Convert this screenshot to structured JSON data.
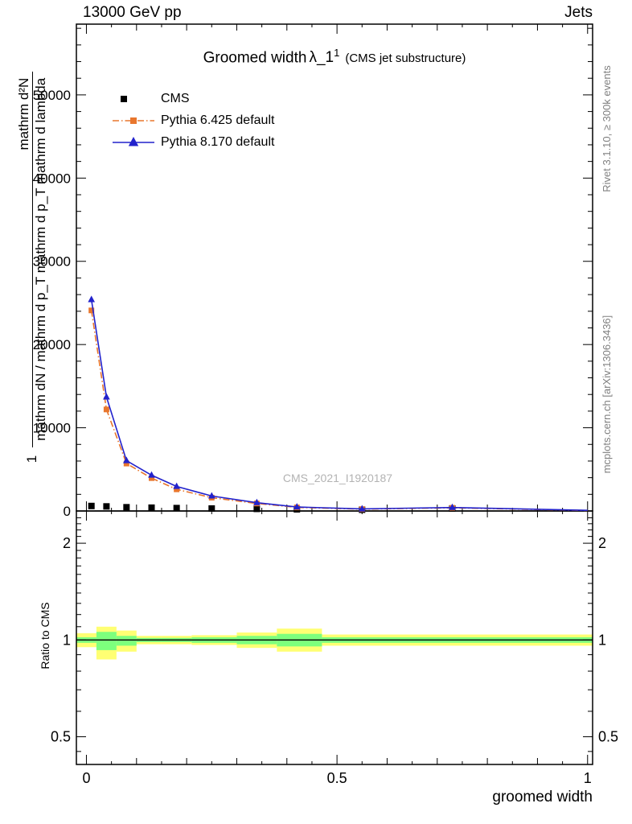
{
  "header": {
    "left": "13000 GeV pp",
    "right": "Jets"
  },
  "side_notes": {
    "top_right": "Rivet 3.1.10, ≥ 300k events",
    "bottom_right": "mcplots.cern.ch [arXiv:1306.3436]"
  },
  "watermark": "CMS_2021_I1920187",
  "colors": {
    "cms": "#000000",
    "pythia6": "#e8762d",
    "pythia8": "#2222cc",
    "band_yellow": "#ffff73",
    "band_green": "#7dff7d",
    "gray_text": "#808080",
    "frame": "#000000"
  },
  "chart_data": [
    {
      "type": "line",
      "panel": "main",
      "title": {
        "main": "Groomed width",
        "symbol": "λ_1",
        "superscript": "1",
        "side": "(CMS jet substructure)"
      },
      "ylabel": {
        "prefix": "1",
        "numerator": "mathrm d²N",
        "denominator": "mathrm dN / mathrm d p_T mathrm d p_T mathrm d lambda"
      },
      "xlim": [
        -0.02,
        1.01
      ],
      "ylim": [
        0,
        58500
      ],
      "y_ticks": [
        0,
        10000,
        20000,
        30000,
        40000,
        50000
      ],
      "y_minor_step": 2000,
      "x_ticks": [
        0,
        0.5,
        1
      ],
      "x_medium_step": 0.1,
      "x_minor_step": 0.05,
      "legend": [
        {
          "label": "CMS",
          "marker": "square",
          "color_key": "cms",
          "line": "none"
        },
        {
          "label": "Pythia 6.425 default",
          "marker": "square",
          "color_key": "pythia6",
          "line": "dashdot"
        },
        {
          "label": "Pythia 8.170 default",
          "marker": "triangle",
          "color_key": "pythia8",
          "line": "solid"
        }
      ],
      "series": [
        {
          "key": "cms",
          "name": "CMS",
          "marker": "square",
          "marker_size": 8,
          "color_key": "cms",
          "line": "none",
          "x": [
            0.01,
            0.04,
            0.08,
            0.13,
            0.18,
            0.25,
            0.34,
            0.42,
            0.55,
            0.73
          ],
          "y": [
            600,
            550,
            450,
            400,
            350,
            300,
            250,
            200,
            150,
            300
          ]
        },
        {
          "key": "pythia6",
          "name": "Pythia 6.425 default",
          "marker": "square",
          "marker_size": 7,
          "color_key": "pythia6",
          "line": "dashdot",
          "x": [
            0.01,
            0.04,
            0.08,
            0.13,
            0.18,
            0.25,
            0.34,
            0.42,
            0.55,
            0.73
          ],
          "y": [
            24100,
            12200,
            5700,
            3950,
            2600,
            1600,
            900,
            430,
            220,
            380
          ],
          "line_to": [
            1.0,
            60
          ]
        },
        {
          "key": "pythia8",
          "name": "Pythia 8.170 default",
          "marker": "triangle",
          "marker_size": 7,
          "color_key": "pythia8",
          "line": "solid",
          "x": [
            0.01,
            0.04,
            0.08,
            0.13,
            0.18,
            0.25,
            0.34,
            0.42,
            0.55,
            0.73
          ],
          "y": [
            25400,
            13700,
            6050,
            4300,
            2950,
            1800,
            1000,
            480,
            250,
            420
          ],
          "line_to": [
            1.0,
            80
          ]
        }
      ]
    },
    {
      "type": "band",
      "panel": "ratio",
      "ylabel": "Ratio to CMS",
      "xlabel": "groomed width",
      "xlim": [
        -0.02,
        1.01
      ],
      "ylim_log": [
        0.41,
        2.52
      ],
      "y_ticks": [
        0.5,
        1,
        2
      ],
      "y_tick_labels": [
        "0.5",
        "1",
        "2"
      ],
      "y_minor_ticks": [
        0.45,
        0.6,
        0.7,
        0.8,
        0.9,
        1.1,
        1.2,
        1.3,
        1.4,
        1.5,
        1.6,
        1.7,
        1.8,
        1.9,
        2.1,
        2.2,
        2.3,
        2.4
      ],
      "x_ticks": [
        0,
        0.5,
        1
      ],
      "x_tick_labels": [
        "0",
        "0.5",
        "1"
      ],
      "reference_line": 1,
      "bands": [
        {
          "x0": -0.02,
          "x1": 0.02,
          "yellow": [
            0.95,
            1.05
          ],
          "green": [
            0.98,
            1.02
          ]
        },
        {
          "x0": 0.02,
          "x1": 0.06,
          "yellow": [
            0.87,
            1.1
          ],
          "green": [
            0.93,
            1.06
          ]
        },
        {
          "x0": 0.06,
          "x1": 0.1,
          "yellow": [
            0.92,
            1.07
          ],
          "green": [
            0.96,
            1.03
          ]
        },
        {
          "x0": 0.1,
          "x1": 0.15,
          "yellow": [
            0.97,
            1.03
          ],
          "green": [
            0.985,
            1.015
          ]
        },
        {
          "x0": 0.15,
          "x1": 0.21,
          "yellow": [
            0.97,
            1.03
          ],
          "green": [
            0.985,
            1.015
          ]
        },
        {
          "x0": 0.21,
          "x1": 0.3,
          "yellow": [
            0.965,
            1.035
          ],
          "green": [
            0.98,
            1.02
          ]
        },
        {
          "x0": 0.3,
          "x1": 0.38,
          "yellow": [
            0.945,
            1.055
          ],
          "green": [
            0.97,
            1.03
          ]
        },
        {
          "x0": 0.38,
          "x1": 0.47,
          "yellow": [
            0.92,
            1.085
          ],
          "green": [
            0.955,
            1.045
          ]
        },
        {
          "x0": 0.47,
          "x1": 1.01,
          "yellow": [
            0.96,
            1.04
          ],
          "green": [
            0.98,
            1.02
          ]
        }
      ]
    }
  ]
}
